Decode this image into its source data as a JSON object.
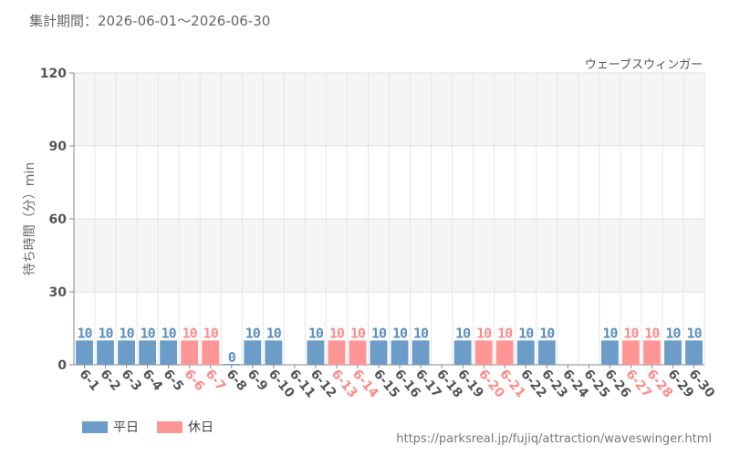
{
  "header": {
    "period": "集計期間：2026-06-01～2026-06-30",
    "attraction": "ウェーブスウィンガー"
  },
  "footer": {
    "source": "https://parksreal.jp/fujiq/attraction/waveswinger.html"
  },
  "colors": {
    "weekday": "#6b9dc8",
    "holiday": "#ff9696",
    "weekday_text": "#5a8fc0",
    "holiday_text": "#ff8a8a"
  },
  "chart_data": {
    "type": "bar",
    "title": "",
    "xlabel": "",
    "ylabel": "待ち時間（分）min",
    "ylim": [
      0,
      120
    ],
    "yticks": [
      0,
      30,
      60,
      90,
      120
    ],
    "grid": true,
    "legend_position": "bottom-left",
    "legend": [
      {
        "key": "weekday",
        "label": "平日"
      },
      {
        "key": "holiday",
        "label": "休日"
      }
    ],
    "categories": [
      "6-1",
      "6-2",
      "6-3",
      "6-4",
      "6-5",
      "6-6",
      "6-7",
      "6-8",
      "6-9",
      "6-10",
      "6-11",
      "6-12",
      "6-13",
      "6-14",
      "6-15",
      "6-16",
      "6-17",
      "6-18",
      "6-19",
      "6-20",
      "6-21",
      "6-22",
      "6-23",
      "6-24",
      "6-25",
      "6-26",
      "6-27",
      "6-28",
      "6-29",
      "6-30"
    ],
    "values": [
      10,
      10,
      10,
      10,
      10,
      10,
      10,
      0,
      10,
      10,
      null,
      10,
      10,
      10,
      10,
      10,
      10,
      null,
      10,
      10,
      10,
      10,
      10,
      null,
      null,
      10,
      10,
      10,
      10,
      10
    ],
    "day_type": [
      "weekday",
      "weekday",
      "weekday",
      "weekday",
      "weekday",
      "holiday",
      "holiday",
      "weekday",
      "weekday",
      "weekday",
      "weekday",
      "weekday",
      "holiday",
      "holiday",
      "weekday",
      "weekday",
      "weekday",
      "weekday",
      "weekday",
      "holiday",
      "holiday",
      "weekday",
      "weekday",
      "weekday",
      "weekday",
      "weekday",
      "holiday",
      "holiday",
      "weekday",
      "weekday"
    ]
  }
}
